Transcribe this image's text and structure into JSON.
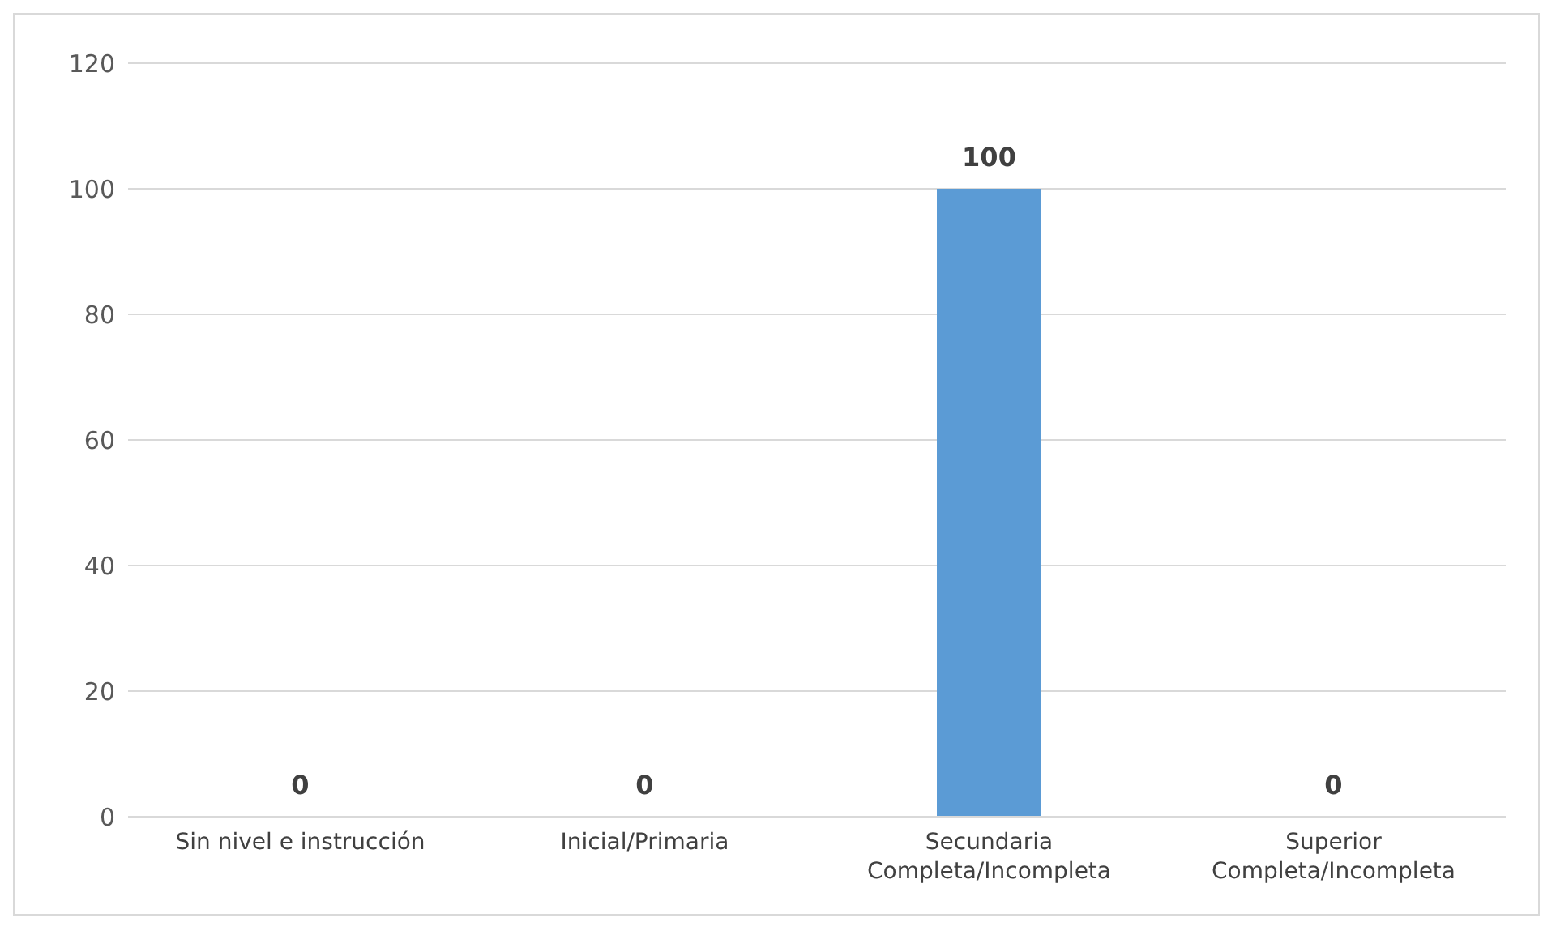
{
  "chart_data": {
    "type": "bar",
    "categories": [
      "Sin nivel e instrucción",
      "Inicial/Primaria",
      "Secundaria Completa/Incompleta",
      "Superior Completa/Incompleta"
    ],
    "values": [
      0,
      0,
      100,
      0
    ],
    "color": "#5b9bd5",
    "ylim": [
      0,
      120
    ],
    "yticks": [
      0,
      20,
      40,
      60,
      80,
      100,
      120
    ],
    "grid": "y",
    "data_labels": true
  }
}
